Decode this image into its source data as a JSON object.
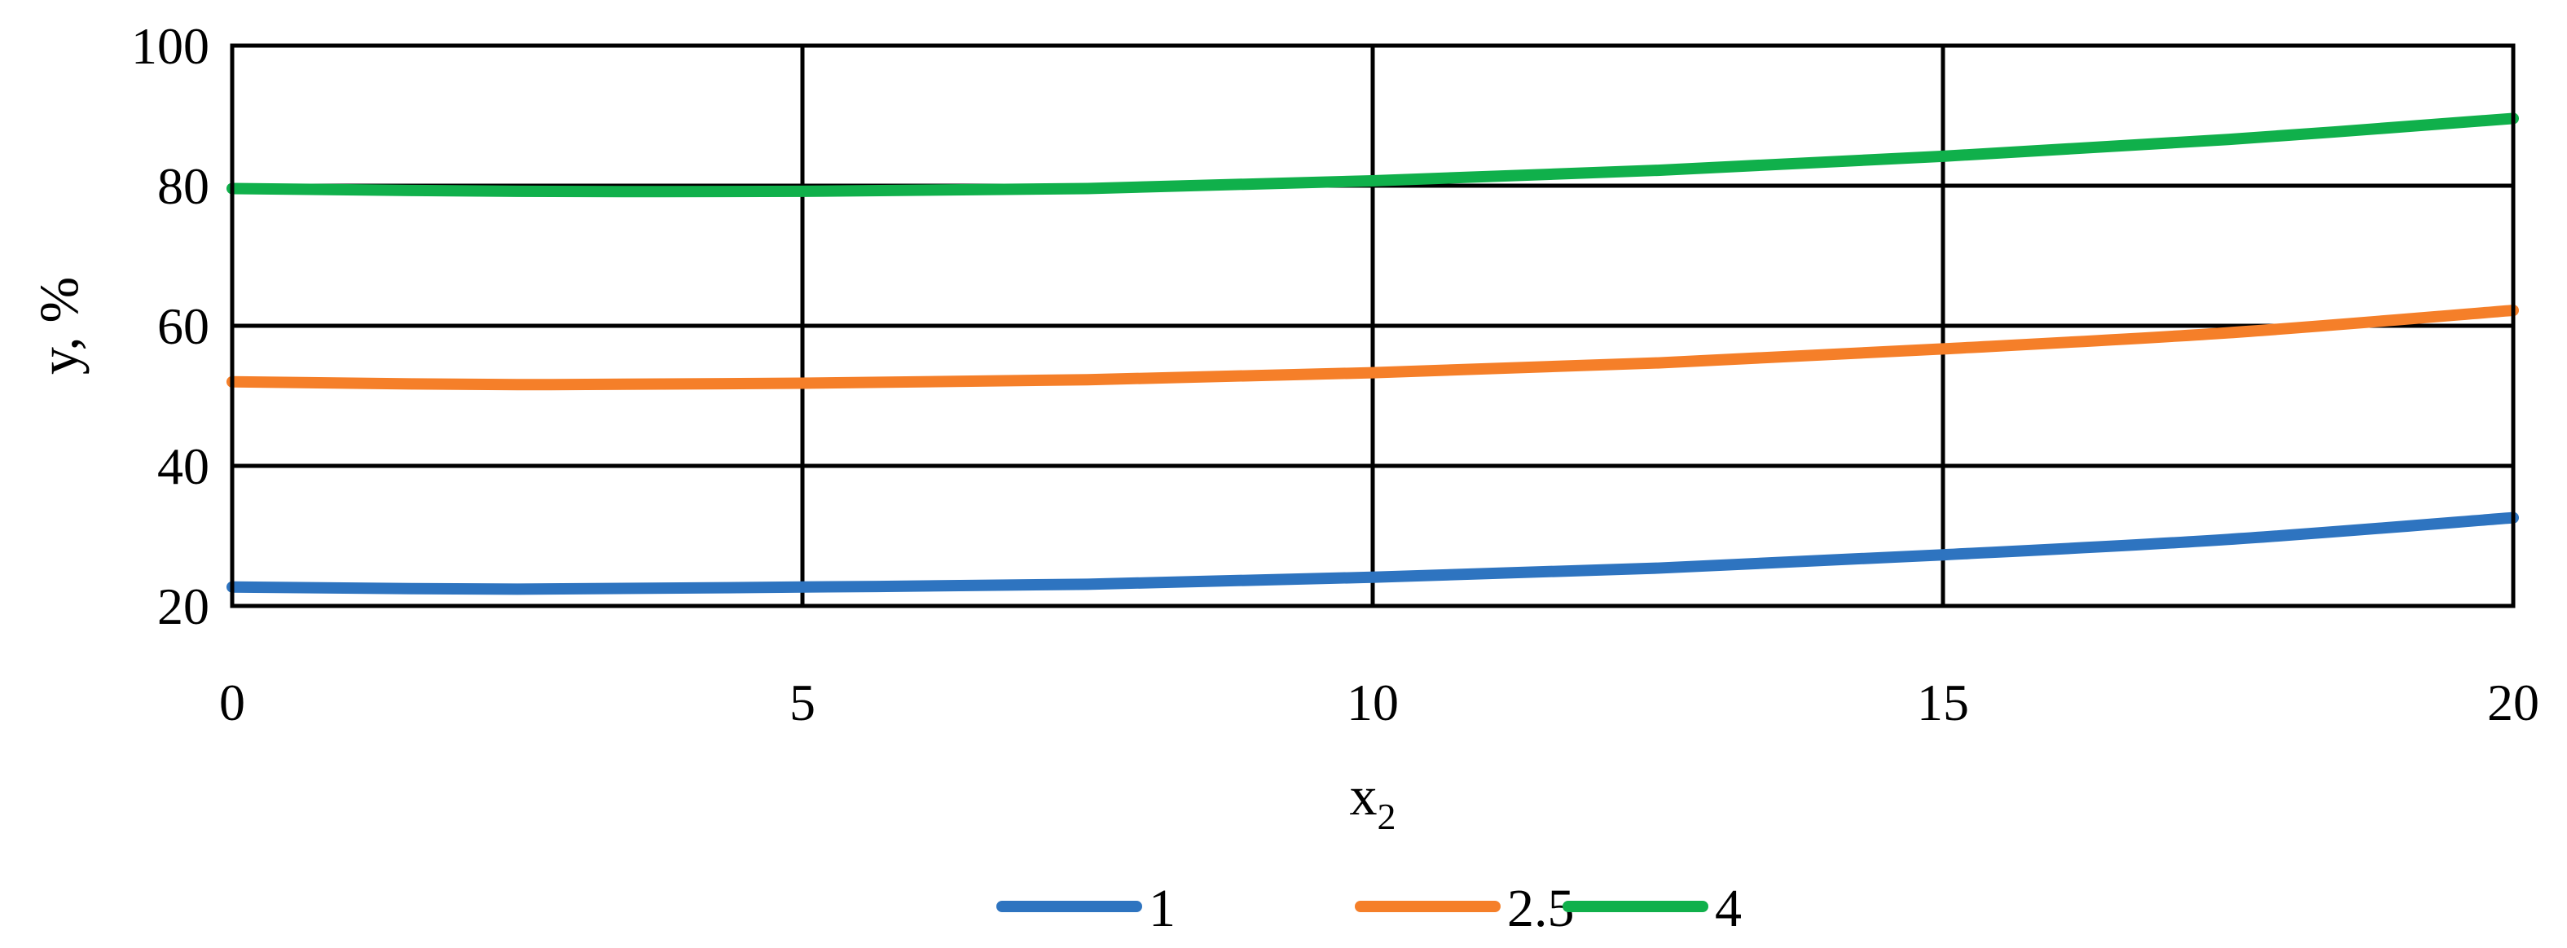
{
  "chart_data": {
    "type": "line",
    "xlabel": "x",
    "xlabel_sub": "2",
    "ylabel": "y, %",
    "xlim": [
      0,
      20
    ],
    "ylim": [
      20,
      100
    ],
    "x_ticks": [
      "0",
      "5",
      "10",
      "15",
      "20"
    ],
    "y_ticks": [
      "20",
      "40",
      "60",
      "80",
      "100"
    ],
    "grid": true,
    "legend_position": "bottom",
    "x": [
      0,
      2.5,
      5,
      7.5,
      10,
      12.5,
      15,
      17.5,
      20
    ],
    "series": [
      {
        "name": "1",
        "color": "#2e74c0",
        "values": [
          22.7,
          22.4,
          22.7,
          23.1,
          24.1,
          25.4,
          27.3,
          29.5,
          32.6
        ]
      },
      {
        "name": "2.5",
        "color": "#f57f29",
        "values": [
          52.0,
          51.6,
          51.8,
          52.3,
          53.3,
          54.7,
          56.7,
          59.0,
          62.2
        ]
      },
      {
        "name": "4",
        "color": "#10b04b",
        "values": [
          79.6,
          79.2,
          79.2,
          79.6,
          80.7,
          82.2,
          84.2,
          86.6,
          89.6
        ]
      }
    ]
  }
}
